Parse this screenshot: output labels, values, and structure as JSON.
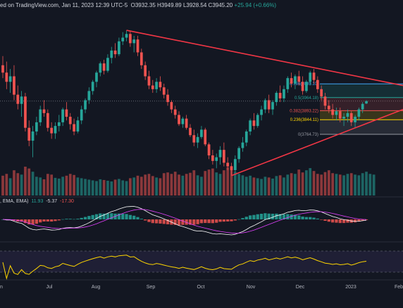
{
  "header": {
    "text": "ed on TradingView.com, Jan 11, 2023 12:39 UTC-5",
    "open_label": "O",
    "open": "3932.35",
    "high_label": "H",
    "high": "3949.89",
    "low_label": "L",
    "low": "3928.54",
    "close_label": "C",
    "close": "3945.20",
    "change": "+25.94 (+0.66%)"
  },
  "macd_label": {
    "prefix": ", EMA, EMA)",
    "v1": "11.93",
    "v2": "-5.37",
    "v3": "-17.30"
  },
  "colors": {
    "background": "#131722",
    "up": "#26a69a",
    "down": "#ef5350",
    "trendline": "#f23645",
    "rsi": "#ffd600",
    "macd": "#ffffff",
    "signal": "#e040fb"
  },
  "chart_data": {
    "type": "candlestick",
    "x_axis": {
      "labels": [
        "n",
        "Jul",
        "Aug",
        "Sep",
        "Oct",
        "Nov",
        "Dec",
        "2023",
        "Feb"
      ]
    },
    "y_range": [
      3520,
      4380
    ],
    "candles": [
      {
        "o": 4140,
        "h": 4190,
        "l": 4070,
        "c": 4100
      },
      {
        "o": 4100,
        "h": 4160,
        "l": 4010,
        "c": 4050
      },
      {
        "o": 4050,
        "h": 4120,
        "l": 3990,
        "c": 4080
      },
      {
        "o": 4080,
        "h": 4140,
        "l": 3950,
        "c": 3980
      },
      {
        "o": 3980,
        "h": 4030,
        "l": 3900,
        "c": 3930
      },
      {
        "o": 3930,
        "h": 4000,
        "l": 3860,
        "c": 3970
      },
      {
        "o": 3970,
        "h": 3990,
        "l": 3780,
        "c": 3800
      },
      {
        "o": 3800,
        "h": 3840,
        "l": 3700,
        "c": 3730
      },
      {
        "o": 3730,
        "h": 3810,
        "l": 3640,
        "c": 3780
      },
      {
        "o": 3780,
        "h": 3860,
        "l": 3760,
        "c": 3830
      },
      {
        "o": 3830,
        "h": 3920,
        "l": 3810,
        "c": 3900
      },
      {
        "o": 3900,
        "h": 3950,
        "l": 3860,
        "c": 3880
      },
      {
        "o": 3880,
        "h": 3900,
        "l": 3780,
        "c": 3800
      },
      {
        "o": 3800,
        "h": 3830,
        "l": 3740,
        "c": 3770
      },
      {
        "o": 3770,
        "h": 3830,
        "l": 3740,
        "c": 3810
      },
      {
        "o": 3810,
        "h": 3870,
        "l": 3780,
        "c": 3830
      },
      {
        "o": 3830,
        "h": 3910,
        "l": 3810,
        "c": 3900
      },
      {
        "o": 3900,
        "h": 3940,
        "l": 3840,
        "c": 3860
      },
      {
        "o": 3860,
        "h": 3880,
        "l": 3790,
        "c": 3820
      },
      {
        "o": 3820,
        "h": 3850,
        "l": 3760,
        "c": 3780
      },
      {
        "o": 3780,
        "h": 3860,
        "l": 3770,
        "c": 3840
      },
      {
        "o": 3840,
        "h": 3920,
        "l": 3820,
        "c": 3900
      },
      {
        "o": 3900,
        "h": 3960,
        "l": 3880,
        "c": 3950
      },
      {
        "o": 3950,
        "h": 4020,
        "l": 3930,
        "c": 4000
      },
      {
        "o": 4000,
        "h": 4060,
        "l": 3980,
        "c": 4050
      },
      {
        "o": 4050,
        "h": 4110,
        "l": 4020,
        "c": 4100
      },
      {
        "o": 4100,
        "h": 4160,
        "l": 4080,
        "c": 4150
      },
      {
        "o": 4150,
        "h": 4170,
        "l": 4090,
        "c": 4110
      },
      {
        "o": 4110,
        "h": 4200,
        "l": 4100,
        "c": 4180
      },
      {
        "o": 4180,
        "h": 4240,
        "l": 4150,
        "c": 4220
      },
      {
        "o": 4220,
        "h": 4260,
        "l": 4180,
        "c": 4200
      },
      {
        "o": 4200,
        "h": 4290,
        "l": 4190,
        "c": 4270
      },
      {
        "o": 4270,
        "h": 4320,
        "l": 4250,
        "c": 4290
      },
      {
        "o": 4290,
        "h": 4330,
        "l": 4270,
        "c": 4310
      },
      {
        "o": 4310,
        "h": 4325,
        "l": 4240,
        "c": 4260
      },
      {
        "o": 4260,
        "h": 4300,
        "l": 4210,
        "c": 4280
      },
      {
        "o": 4280,
        "h": 4300,
        "l": 4190,
        "c": 4210
      },
      {
        "o": 4210,
        "h": 4230,
        "l": 4120,
        "c": 4140
      },
      {
        "o": 4140,
        "h": 4160,
        "l": 4060,
        "c": 4080
      },
      {
        "o": 4080,
        "h": 4110,
        "l": 4010,
        "c": 4030
      },
      {
        "o": 4030,
        "h": 4060,
        "l": 3990,
        "c": 4010
      },
      {
        "o": 4010,
        "h": 4070,
        "l": 3990,
        "c": 4050
      },
      {
        "o": 4050,
        "h": 4080,
        "l": 4000,
        "c": 4020
      },
      {
        "o": 4020,
        "h": 4040,
        "l": 3960,
        "c": 3980
      },
      {
        "o": 3980,
        "h": 4010,
        "l": 3920,
        "c": 3940
      },
      {
        "o": 3940,
        "h": 3950,
        "l": 3880,
        "c": 3900
      },
      {
        "o": 3900,
        "h": 3920,
        "l": 3850,
        "c": 3870
      },
      {
        "o": 3870,
        "h": 3890,
        "l": 3810,
        "c": 3820
      },
      {
        "o": 3820,
        "h": 3860,
        "l": 3800,
        "c": 3850
      },
      {
        "o": 3850,
        "h": 3870,
        "l": 3790,
        "c": 3800
      },
      {
        "o": 3800,
        "h": 3820,
        "l": 3750,
        "c": 3760
      },
      {
        "o": 3760,
        "h": 3790,
        "l": 3700,
        "c": 3720
      },
      {
        "o": 3720,
        "h": 3770,
        "l": 3690,
        "c": 3750
      },
      {
        "o": 3750,
        "h": 3810,
        "l": 3740,
        "c": 3790
      },
      {
        "o": 3790,
        "h": 3800,
        "l": 3700,
        "c": 3710
      },
      {
        "o": 3710,
        "h": 3720,
        "l": 3630,
        "c": 3650
      },
      {
        "o": 3650,
        "h": 3680,
        "l": 3600,
        "c": 3620
      },
      {
        "o": 3620,
        "h": 3660,
        "l": 3580,
        "c": 3640
      },
      {
        "o": 3640,
        "h": 3700,
        "l": 3600,
        "c": 3680
      },
      {
        "o": 3680,
        "h": 3720,
        "l": 3590,
        "c": 3610
      },
      {
        "o": 3610,
        "h": 3640,
        "l": 3570,
        "c": 3590
      },
      {
        "o": 3590,
        "h": 3610,
        "l": 3540,
        "c": 3570
      },
      {
        "o": 3570,
        "h": 3650,
        "l": 3560,
        "c": 3630
      },
      {
        "o": 3630,
        "h": 3700,
        "l": 3610,
        "c": 3690
      },
      {
        "o": 3690,
        "h": 3750,
        "l": 3670,
        "c": 3720
      },
      {
        "o": 3720,
        "h": 3790,
        "l": 3700,
        "c": 3780
      },
      {
        "o": 3780,
        "h": 3850,
        "l": 3760,
        "c": 3840
      },
      {
        "o": 3840,
        "h": 3880,
        "l": 3790,
        "c": 3810
      },
      {
        "o": 3810,
        "h": 3880,
        "l": 3800,
        "c": 3870
      },
      {
        "o": 3870,
        "h": 3920,
        "l": 3840,
        "c": 3900
      },
      {
        "o": 3900,
        "h": 3960,
        "l": 3880,
        "c": 3950
      },
      {
        "o": 3950,
        "h": 3980,
        "l": 3880,
        "c": 3900
      },
      {
        "o": 3900,
        "h": 3950,
        "l": 3870,
        "c": 3940
      },
      {
        "o": 3940,
        "h": 4000,
        "l": 3920,
        "c": 3990
      },
      {
        "o": 3990,
        "h": 4030,
        "l": 3940,
        "c": 3960
      },
      {
        "o": 3960,
        "h": 4030,
        "l": 3940,
        "c": 4010
      },
      {
        "o": 4010,
        "h": 4080,
        "l": 3990,
        "c": 4070
      },
      {
        "o": 4070,
        "h": 4100,
        "l": 4020,
        "c": 4040
      },
      {
        "o": 4040,
        "h": 4090,
        "l": 4010,
        "c": 4080
      },
      {
        "o": 4080,
        "h": 4110,
        "l": 4030,
        "c": 4050
      },
      {
        "o": 4050,
        "h": 4080,
        "l": 3980,
        "c": 4000
      },
      {
        "o": 4000,
        "h": 4060,
        "l": 3990,
        "c": 4050
      },
      {
        "o": 4050,
        "h": 4110,
        "l": 4030,
        "c": 4100
      },
      {
        "o": 4100,
        "h": 4120,
        "l": 4040,
        "c": 4060
      },
      {
        "o": 4060,
        "h": 4080,
        "l": 3990,
        "c": 4010
      },
      {
        "o": 4010,
        "h": 4030,
        "l": 3950,
        "c": 3970
      },
      {
        "o": 3970,
        "h": 3990,
        "l": 3900,
        "c": 3920
      },
      {
        "o": 3920,
        "h": 3950,
        "l": 3880,
        "c": 3900
      },
      {
        "o": 3900,
        "h": 3930,
        "l": 3850,
        "c": 3870
      },
      {
        "o": 3870,
        "h": 3910,
        "l": 3840,
        "c": 3890
      },
      {
        "o": 3890,
        "h": 3910,
        "l": 3830,
        "c": 3850
      },
      {
        "o": 3850,
        "h": 3880,
        "l": 3810,
        "c": 3860
      },
      {
        "o": 3860,
        "h": 3900,
        "l": 3830,
        "c": 3880
      },
      {
        "o": 3880,
        "h": 3890,
        "l": 3810,
        "c": 3830
      },
      {
        "o": 3830,
        "h": 3870,
        "l": 3800,
        "c": 3860
      },
      {
        "o": 3860,
        "h": 3910,
        "l": 3840,
        "c": 3900
      },
      {
        "o": 3900,
        "h": 3940,
        "l": 3880,
        "c": 3930
      },
      {
        "o": 3932,
        "h": 3950,
        "l": 3929,
        "c": 3945
      }
    ],
    "volume": [
      55,
      60,
      48,
      70,
      62,
      58,
      80,
      75,
      66,
      52,
      50,
      45,
      60,
      58,
      49,
      47,
      52,
      55,
      60,
      57,
      50,
      48,
      46,
      44,
      42,
      40,
      45,
      43,
      41,
      39,
      44,
      46,
      42,
      40,
      48,
      50,
      55,
      52,
      58,
      60,
      54,
      50,
      48,
      62,
      64,
      60,
      66,
      58,
      55,
      60,
      63,
      70,
      56,
      52,
      68,
      72,
      75,
      64,
      60,
      70,
      78,
      82,
      66,
      60,
      56,
      52,
      55,
      50,
      48,
      46,
      52,
      50,
      47,
      54,
      56,
      50,
      58,
      62,
      60,
      72,
      64,
      70,
      76,
      68,
      60,
      58,
      65,
      70,
      62,
      60,
      58,
      56,
      60,
      62,
      58,
      56,
      62,
      66,
      60,
      58
    ],
    "fibonacci": [
      {
        "label": "0.786(4039.10)",
        "value": 4039.1,
        "color": "#42a5f5"
      },
      {
        "label": "0.5(3964.18)",
        "value": 3964.18,
        "color": "#26a69a"
      },
      {
        "label": "0.382(3893.22)",
        "value": 3893.22,
        "color": "#ef5350"
      },
      {
        "label": "0.236(3844.11)",
        "value": 3844.11,
        "color": "#ffd600"
      },
      {
        "label": "0(3764.73)",
        "value": 3764.73,
        "color": "#9598a1"
      }
    ]
  },
  "x_labels": [
    "n",
    "Jul",
    "Aug",
    "Sep",
    "Oct",
    "Nov",
    "Dec",
    "2023",
    "Feb"
  ]
}
